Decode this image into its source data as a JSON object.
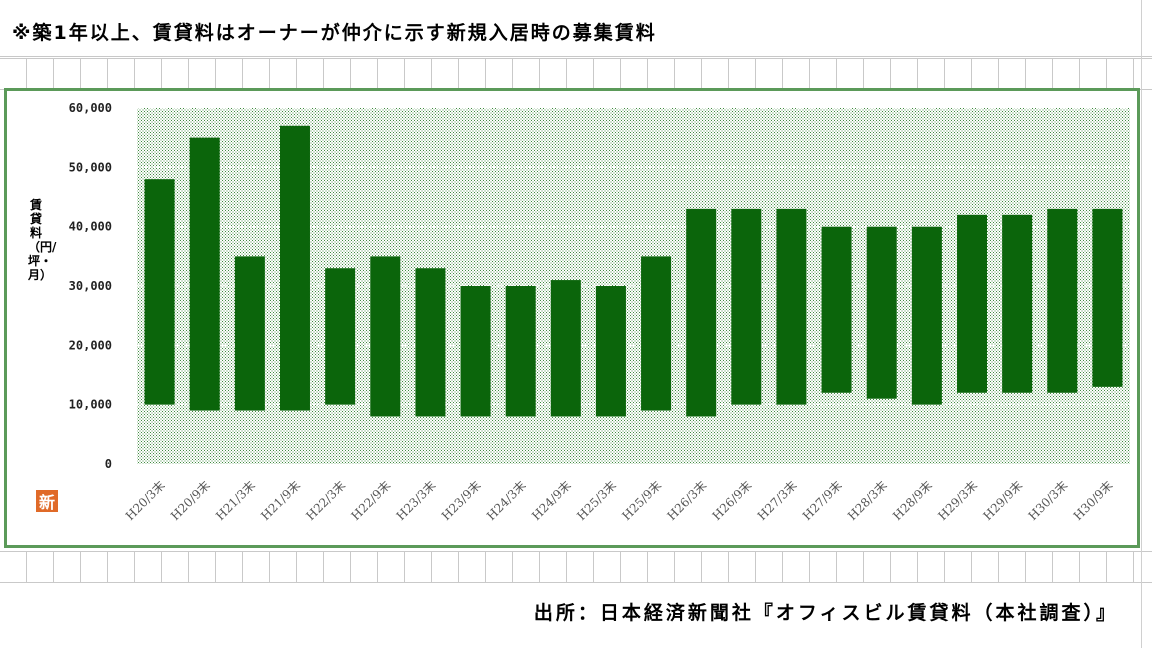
{
  "header": {
    "note": "※築1年以上、賃貸料はオーナーが仲介に示す新規入居時の募集賃料"
  },
  "footer": {
    "source": "出所：日本経済新聞社『オフィスビル賃貸料（本社調査）』"
  },
  "logo": {
    "text": "新"
  },
  "chart_data": {
    "type": "bar",
    "subtype": "floating-range",
    "ylabel": "賃貸料（円/坪・月）",
    "ylim": [
      0,
      60000
    ],
    "yticks": [
      "0",
      "10,000",
      "20,000",
      "30,000",
      "40,000",
      "50,000",
      "60,000"
    ],
    "ytick_values": [
      0,
      10000,
      20000,
      30000,
      40000,
      50000,
      60000
    ],
    "categories": [
      "H20/3末",
      "H20/9末",
      "H21/3末",
      "H21/9末",
      "H22/3末",
      "H22/9末",
      "H23/3末",
      "H23/9末",
      "H24/3末",
      "H24/9末",
      "H25/3末",
      "H25/9末",
      "H26/3末",
      "H26/9末",
      "H27/3末",
      "H27/9末",
      "H28/3末",
      "H28/9末",
      "H29/3末",
      "H29/9末",
      "H30/3末",
      "H30/9末"
    ],
    "series": [
      {
        "low": [
          10000,
          9000,
          9000,
          9000,
          10000,
          8000,
          8000,
          8000,
          8000,
          8000,
          8000,
          9000,
          8000,
          10000,
          10000,
          12000,
          11000,
          10000,
          12000,
          12000,
          12000,
          13000
        ],
        "high": [
          48000,
          55000,
          35000,
          57000,
          33000,
          35000,
          33000,
          30000,
          30000,
          31000,
          30000,
          35000,
          43000,
          43000,
          43000,
          40000,
          40000,
          40000,
          42000,
          42000,
          43000,
          43000
        ]
      }
    ],
    "grid": true,
    "colors": {
      "bar": "#0b650b",
      "plot_bg": "#d9ead9",
      "frame": "#5b9a59"
    }
  }
}
